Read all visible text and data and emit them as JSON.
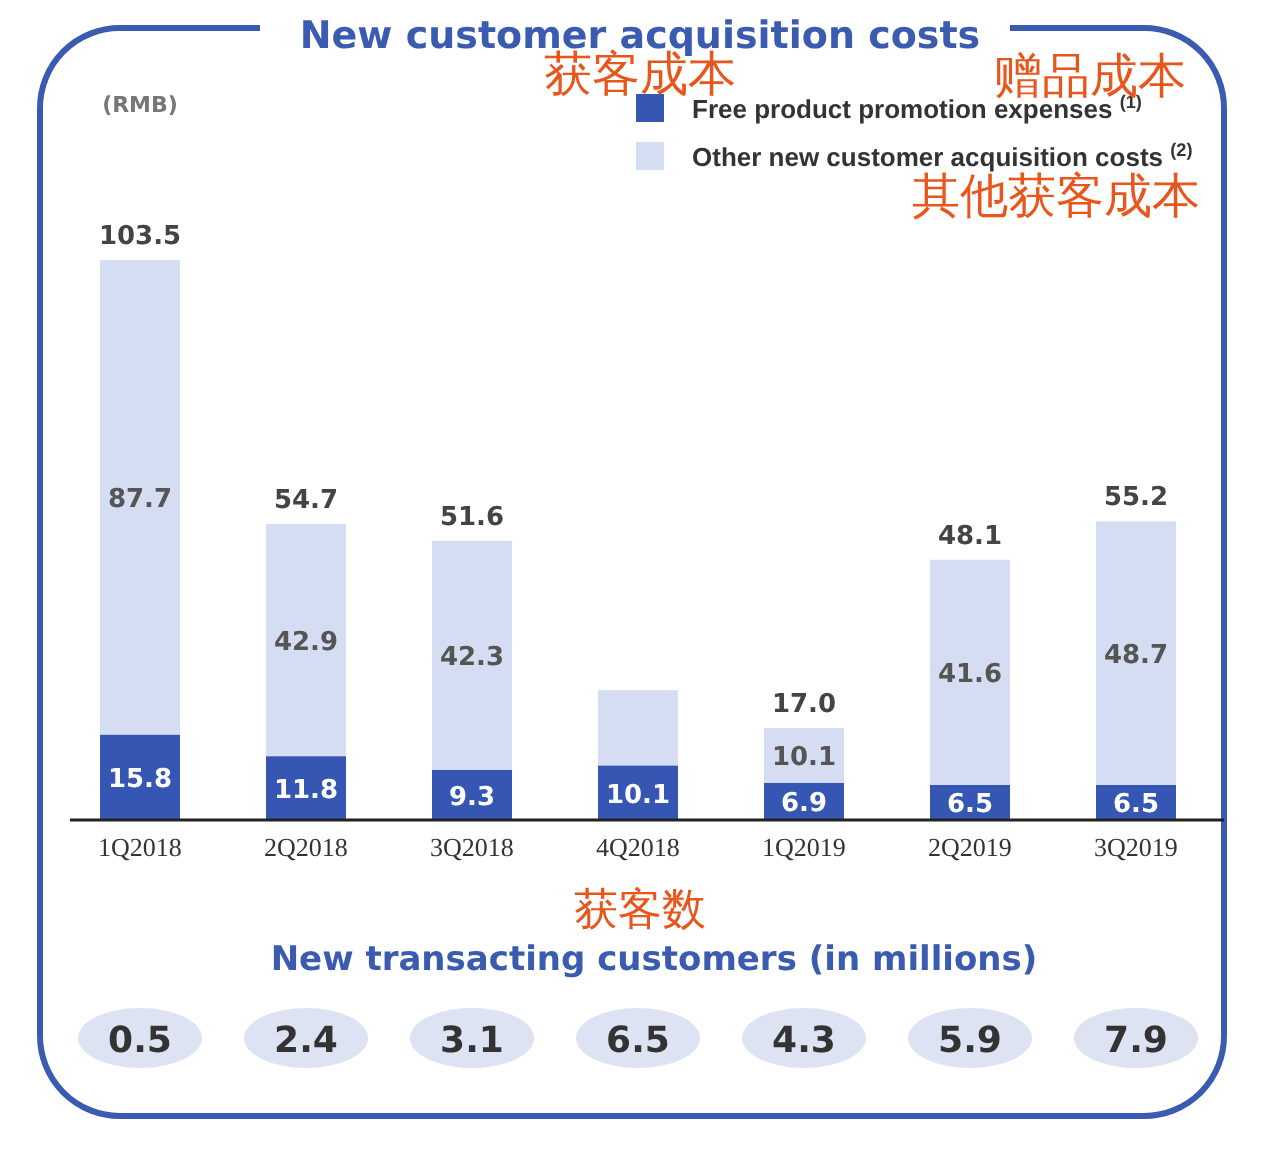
{
  "chart_data": [
    {
      "type": "bar",
      "title": "New customer acquisition costs",
      "ylabel": "(RMB)",
      "stacked": true,
      "legend": "top right",
      "categories": [
        "1Q2018",
        "2Q2018",
        "3Q2018",
        "4Q2018",
        "1Q2019",
        "2Q2019",
        "3Q2019"
      ],
      "series": [
        {
          "name": "Free product promotion expenses $^{(1)}$",
          "color": "#3556b3",
          "values": [
            15.8,
            11.8,
            9.3,
            10.1,
            6.9,
            6.5,
            6.5
          ],
          "value_labels": [
            "15.8",
            "11.8",
            "9.3",
            "10.1",
            "6.9",
            "6.5",
            "6.5"
          ]
        },
        {
          "name": "Other new customer acquisition costs $^{(2)}$",
          "color": "#d4ddf1",
          "values": [
            87.7,
            42.9,
            42.3,
            13.9,
            10.1,
            41.6,
            48.7
          ],
          "value_labels": [
            "87.7",
            "42.9",
            "42.3",
            null,
            "10.1",
            "41.6",
            "48.7"
          ]
        }
      ],
      "totals": [
        "103.5",
        "54.7",
        "51.6",
        null,
        "17.0",
        "48.1",
        "55.2"
      ],
      "annotations": [
        "获客成本",
        "赠品成本",
        "其他获客成本"
      ]
    },
    {
      "type": "other",
      "title": "New transacting customers (in millions)",
      "data_labels": true,
      "values": [
        0.5,
        2.4,
        3.1,
        6.5,
        4.3,
        5.9,
        7.9
      ],
      "annotations": [
        "获客数"
      ]
    }
  ]
}
